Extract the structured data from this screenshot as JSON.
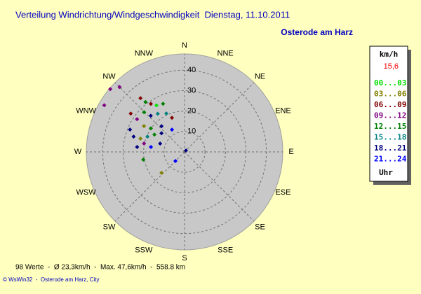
{
  "chart_data": {
    "type": "polar-scatter",
    "title": "Verteilung Windrichtung/Windgeschwindigkeit  Dienstag, 11.10.2011",
    "subtitle": "Osterode am Harz",
    "legend_title": "km/h",
    "current_speed": "15,6",
    "legend_footer": "Uhr",
    "footer": "98 Werte  -  Ø 23,3km/h  -  Max. 47,6km/h  -  558.8 km",
    "credit": "© WsWin32  -  Osterode am Harz, City",
    "rlim": [
      0,
      48
    ],
    "rticks": [
      10,
      20,
      30,
      40
    ],
    "angle_ticks": [
      {
        "value": 0,
        "label": "N"
      },
      {
        "value": 22.5,
        "label": "NNE"
      },
      {
        "value": 45,
        "label": "NE"
      },
      {
        "value": 67.5,
        "label": "ENE"
      },
      {
        "value": 90,
        "label": "E"
      },
      {
        "value": 112.5,
        "label": "ESE"
      },
      {
        "value": 135,
        "label": "SE"
      },
      {
        "value": 157.5,
        "label": "SSE"
      },
      {
        "value": 180,
        "label": "S"
      },
      {
        "value": 202.5,
        "label": "SSW"
      },
      {
        "value": 225,
        "label": "SW"
      },
      {
        "value": 247.5,
        "label": "WSW"
      },
      {
        "value": 270,
        "label": "W"
      },
      {
        "value": 292.5,
        "label": "WNW"
      },
      {
        "value": 315,
        "label": "NW"
      },
      {
        "value": 337.5,
        "label": "NNW"
      }
    ],
    "series": [
      {
        "name": "00...03",
        "color": "#00e000",
        "directions": [
          329
        ],
        "values": [
          26.6
        ]
      },
      {
        "name": "03...06",
        "color": "#808000",
        "directions": [
          302.5,
          286.8,
          227.7
        ],
        "values": [
          23.5,
          22.5,
          15.2
        ]
      },
      {
        "name": "06...09",
        "color": "#800000",
        "directions": [
          320.7,
          325,
          305.5,
          339.8
        ],
        "values": [
          34,
          28.7,
          32.3,
          17.8
        ]
      },
      {
        "name": "09...12",
        "color": "#800080",
        "directions": [
          310.3,
          315,
          300.2,
          304.6,
          281.7
        ],
        "values": [
          47.6,
          44.9,
          45.4,
          28.2,
          20.2
        ]
      },
      {
        "name": "12...15",
        "color": "#008000",
        "directions": [
          322,
          336,
          314.5,
          305,
          300,
          259.4
        ],
        "values": [
          31,
          25.8,
          27.7,
          20.1,
          17,
          20.5
        ]
      },
      {
        "name": "15...18",
        "color": "#008080",
        "directions": [
          325,
          334.7,
          292.5
        ],
        "values": [
          22.8,
          20.8,
          19.6
        ]
      },
      {
        "name": "18...21",
        "color": "#000080",
        "directions": [
          317,
          286.8,
          309,
          275.9,
          288.9,
          292.3,
          318.3,
          45
        ],
        "values": [
          24.2,
          26,
          14.5,
          23.3,
          12.6,
          28.8,
          16.9,
          1
        ]
      },
      {
        "name": "21...24",
        "color": "#0000ff",
        "directions": [
          330.6,
          278.3,
          225
        ],
        "values": [
          12.5,
          16.6,
          6.3
        ]
      }
    ]
  }
}
